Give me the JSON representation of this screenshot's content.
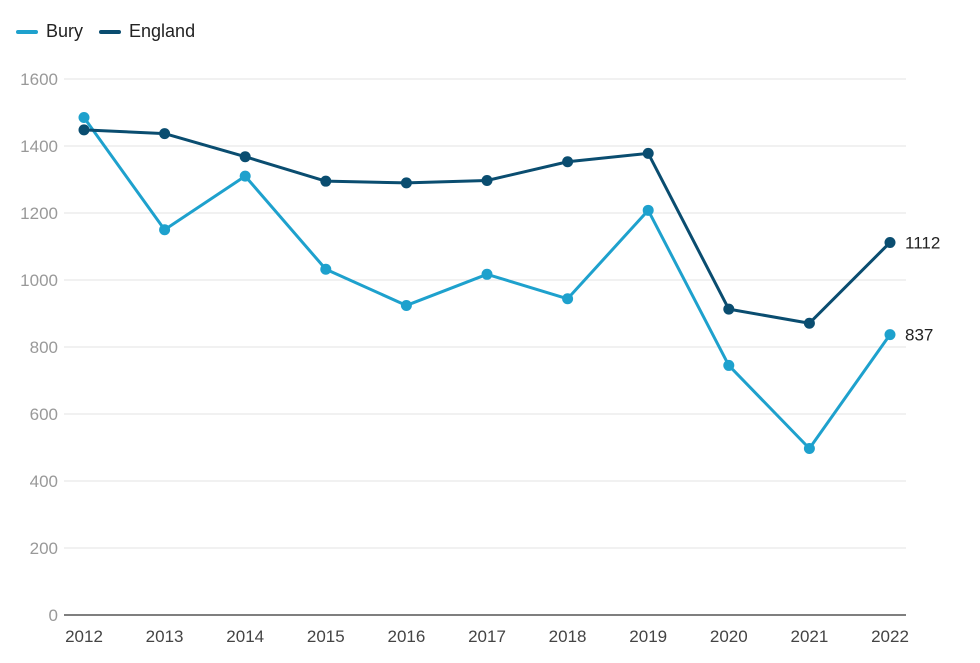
{
  "chart_data": {
    "type": "line",
    "title": "",
    "xlabel": "",
    "ylabel": "",
    "x": [
      "2012",
      "2013",
      "2014",
      "2015",
      "2016",
      "2017",
      "2018",
      "2019",
      "2020",
      "2021",
      "2022"
    ],
    "ylim": [
      0,
      1600
    ],
    "yticks": [
      0,
      200,
      400,
      600,
      800,
      1000,
      1200,
      1400,
      1600
    ],
    "grid": true,
    "legend_position": "top-left",
    "series": [
      {
        "name": "Bury",
        "color": "#1ea1cd",
        "values": [
          1485,
          1150,
          1310,
          1032,
          924,
          1017,
          944,
          1208,
          745,
          497,
          837
        ],
        "end_label": "837"
      },
      {
        "name": "England",
        "color": "#0a4d70",
        "values": [
          1448,
          1437,
          1368,
          1295,
          1290,
          1297,
          1353,
          1378,
          913,
          871,
          1112
        ],
        "end_label": "1112"
      }
    ]
  }
}
